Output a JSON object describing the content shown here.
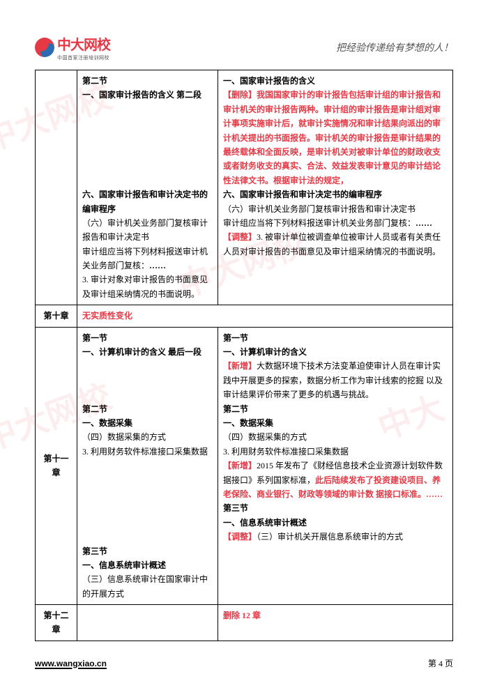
{
  "header": {
    "logo_text": "中大网校",
    "logo_sub": "中国首家注册培训网校",
    "slogan": "把经验传递给有梦想的人！"
  },
  "rows": [
    {
      "col1": "",
      "col2_html": "<span class='section-title'>第二节</span><br><span class='section-title'>一、国家审计报告的含义 第二段</span><br><br><br><br><br><br><br><span class='section-title'>六、国家审计报告和审计决定书的编审程序</span><br>（六）审计机关业务部门复核审计报告和审计决定书<br>审计组应当将下列材料报送审计机关业务部门复核：<span class='bold'>……</span><br>3. 审计对象对审计报告的书面意见及审计组采纳情况的书面说明。",
      "col3_html": "<span class='section-title'>一、国家审计报告的含义</span><br><span class='red'>【删除】我国国家审计的审计报告包括审计组的审计报告和审计机关的审计报告两种。审计组的审计报告是审计组对审计事项实施审计后，就审计实施情况和审计结果向派出的审计机关提出的书面报告。审计机关的审计报告是审计结果的最终载体和全面反映，是审计机关对被审计单位的财政收支或者财务收支的真实、合法、效益发表审计意见的审计结论性法律文书。根据审计法的规定，</span><br><span class='section-title'>六、国家审计报告和审计决定书的编审程序</span><br>（六）审计机关业务部门复核审计报告和审计决定书<br>审计组应当将下列材料报送审计机关业务部门复核：<span class='bold'>……</span><br><span class='red'>【调整】</span>3. 被审计单位被调查单位被审计人员或者有关责任人员对审计报告的书面意见及审计组采纳情况的书面说明。<br>&nbsp;"
    },
    {
      "col1": "第十章",
      "col2_html": "<span class='red'>无实质性变化</span>",
      "col3_html": "",
      "merge23": true
    },
    {
      "col1": "第十一章",
      "col2_html": "<span class='section-title'>第一节</span><br><span class='section-title'>一、计算机审计的含义 最后一段</span><br><br><br><br><span class='section-title'>第二节</span><br><span class='section-title'>一、数据采集</span><br>（四）数据采集的方式<br>3. 利用财务软件标准接口采集数据<br><br><br><br><br><br><br><span class='section-title'>第三节</span><br><span class='section-title'>一、信息系统审计概述</span><br>（三）信息系统审计在国家审计中的开展方式",
      "col3_html": "<span class='section-title'>第一节</span><br><span class='section-title'>一、计算机审计的含义</span><br><span class='red'>【新增】</span>大数据环境下技术方法变革迫使审计人员在审计实践中开展更多的探索，数据分析工作为审计线索的挖掘 以及审计结果评价带来了更多的机遇与挑战。<br><span class='section-title'>第二节</span><br><span class='section-title'>一、数据采集</span><br>（四）数据采集的方式<br>3. 利用财务软件标准接口采集数据<br><span class='red'>【新增】</span>2015 年发布了《财经信息技术企业资源计划软件数据接口》系列国家标准，<span class='red'>此后陆续发布了投资建设项目、养老保险、商业银行、财政等领域的审计数 据接口标准。……</span><br><span class='section-title'>第三节</span><br><span class='section-title'>一、信息系统审计概述</span><br><span class='red'>【调整】</span>（三）审计机关开展信息系统审计的方式<br>&nbsp;"
    },
    {
      "col1": "第十二章",
      "col2_html": "",
      "col3_html": "<span class='red'>删除 12 章</span>"
    }
  ],
  "footer": {
    "url": "www.wangxiao.cn",
    "page": "第 4 页"
  },
  "colors": {
    "red": "#e63946",
    "text": "#000000",
    "bg": "#ffffff"
  }
}
